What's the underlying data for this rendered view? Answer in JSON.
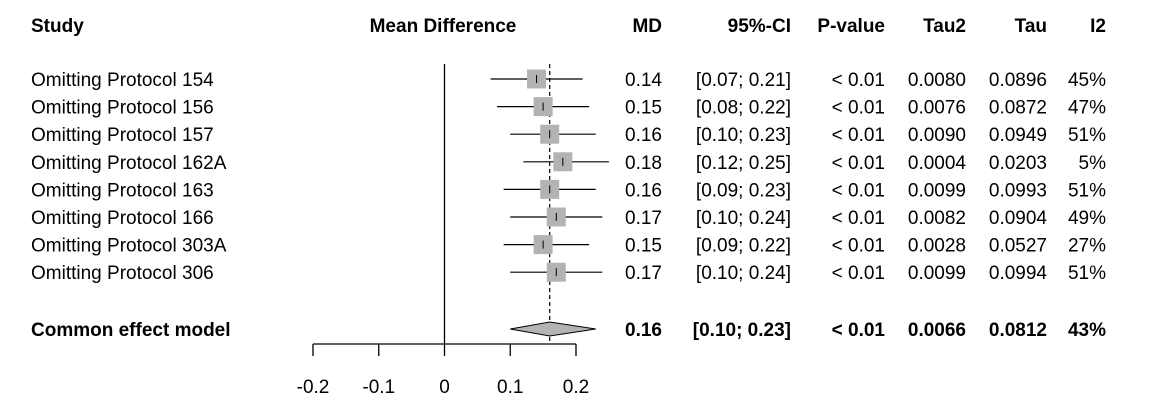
{
  "chart_data": {
    "type": "forest",
    "columns": {
      "study": "Study",
      "plot": "Mean Difference",
      "md": "MD",
      "ci": "95%-CI",
      "p": "P-value",
      "tau2": "Tau2",
      "tau": "Tau",
      "i2": "I2"
    },
    "rows": [
      {
        "study": "Omitting Protocol 154",
        "md": 0.14,
        "lower": 0.07,
        "upper": 0.21,
        "md_text": "0.14",
        "ci_text": "[0.07; 0.21]",
        "p_text": "< 0.01",
        "tau2_text": "0.0080",
        "tau_text": "0.0896",
        "i2_text": "45%"
      },
      {
        "study": "Omitting Protocol 156",
        "md": 0.15,
        "lower": 0.08,
        "upper": 0.22,
        "md_text": "0.15",
        "ci_text": "[0.08; 0.22]",
        "p_text": "< 0.01",
        "tau2_text": "0.0076",
        "tau_text": "0.0872",
        "i2_text": "47%"
      },
      {
        "study": "Omitting Protocol 157",
        "md": 0.16,
        "lower": 0.1,
        "upper": 0.23,
        "md_text": "0.16",
        "ci_text": "[0.10; 0.23]",
        "p_text": "< 0.01",
        "tau2_text": "0.0090",
        "tau_text": "0.0949",
        "i2_text": "51%"
      },
      {
        "study": "Omitting Protocol 162A",
        "md": 0.18,
        "lower": 0.12,
        "upper": 0.25,
        "md_text": "0.18",
        "ci_text": "[0.12; 0.25]",
        "p_text": "< 0.01",
        "tau2_text": "0.0004",
        "tau_text": "0.0203",
        "i2_text": "5%"
      },
      {
        "study": "Omitting Protocol 163",
        "md": 0.16,
        "lower": 0.09,
        "upper": 0.23,
        "md_text": "0.16",
        "ci_text": "[0.09; 0.23]",
        "p_text": "< 0.01",
        "tau2_text": "0.0099",
        "tau_text": "0.0993",
        "i2_text": "51%"
      },
      {
        "study": "Omitting Protocol 166",
        "md": 0.17,
        "lower": 0.1,
        "upper": 0.24,
        "md_text": "0.17",
        "ci_text": "[0.10; 0.24]",
        "p_text": "< 0.01",
        "tau2_text": "0.0082",
        "tau_text": "0.0904",
        "i2_text": "49%"
      },
      {
        "study": "Omitting Protocol 303A",
        "md": 0.15,
        "lower": 0.09,
        "upper": 0.22,
        "md_text": "0.15",
        "ci_text": "[0.09; 0.22]",
        "p_text": "< 0.01",
        "tau2_text": "0.0028",
        "tau_text": "0.0527",
        "i2_text": "27%"
      },
      {
        "study": "Omitting Protocol 306",
        "md": 0.17,
        "lower": 0.1,
        "upper": 0.24,
        "md_text": "0.17",
        "ci_text": "[0.10; 0.24]",
        "p_text": "< 0.01",
        "tau2_text": "0.0099",
        "tau_text": "0.0994",
        "i2_text": "51%"
      }
    ],
    "summary": {
      "study": "Common effect model",
      "md": 0.16,
      "lower": 0.1,
      "upper": 0.23,
      "md_text": "0.16",
      "ci_text": "[0.10; 0.23]",
      "p_text": "< 0.01",
      "tau2_text": "0.0066",
      "tau_text": "0.0812",
      "i2_text": "43%"
    },
    "xaxis": {
      "ticks": [
        -0.2,
        -0.1,
        0,
        0.1,
        0.2
      ],
      "tick_labels": [
        "-0.2",
        "-0.1",
        "0",
        "0.1",
        "0.2"
      ],
      "range": [
        -0.2,
        0.2
      ]
    },
    "null_line": 0,
    "reference_line": 0.16,
    "colors": {
      "box": "#b3b3b3",
      "diamond": "#b3b3b3",
      "line": "#000000"
    }
  }
}
